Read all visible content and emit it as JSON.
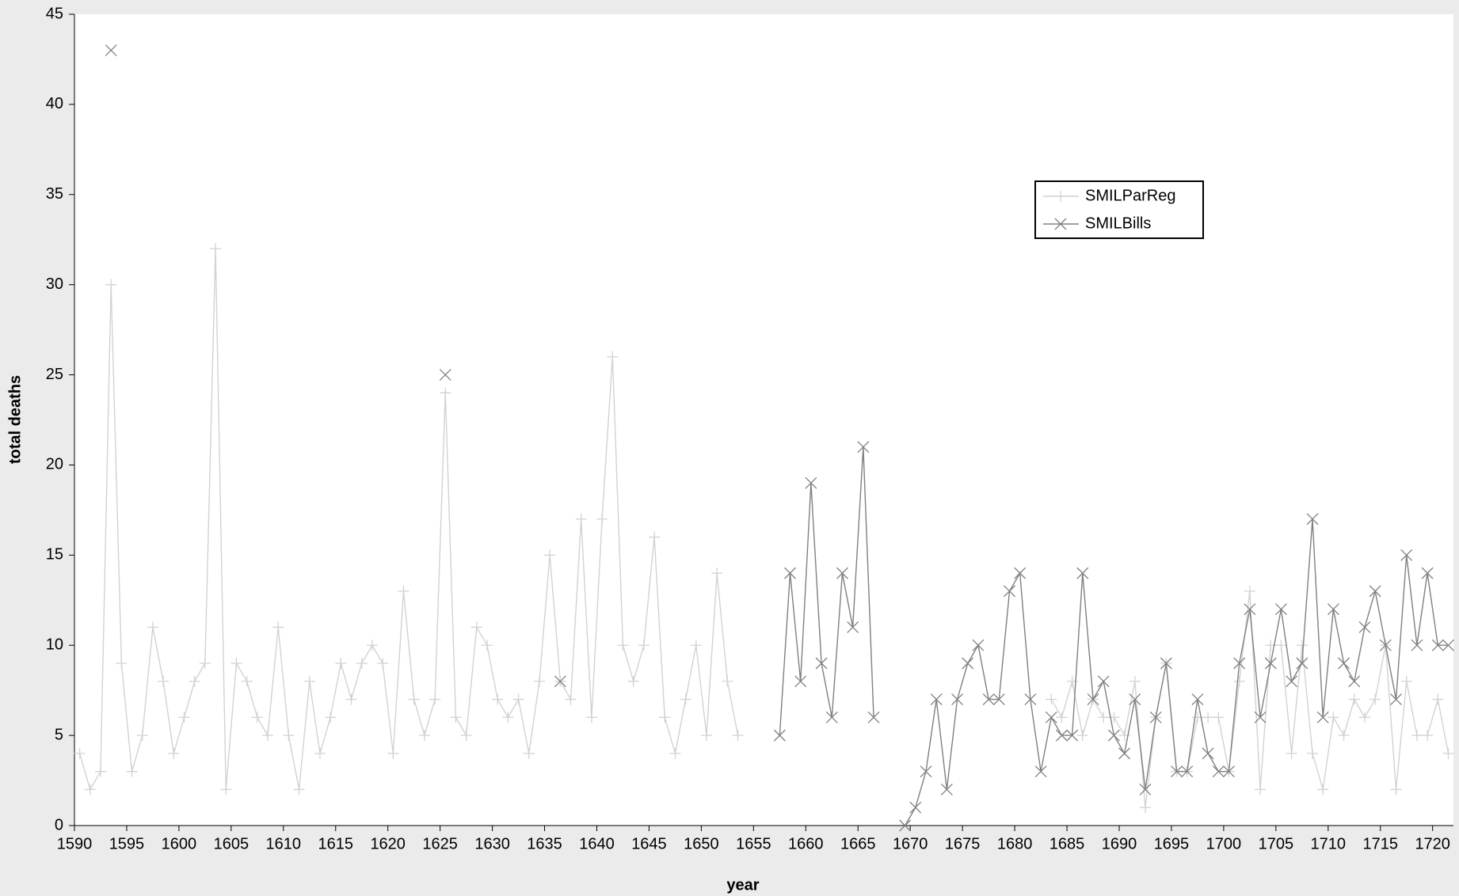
{
  "chart_data": {
    "type": "line",
    "x_label": "year",
    "y_label": "total deaths",
    "categories": [
      1590,
      1591,
      1592,
      1593,
      1594,
      1595,
      1596,
      1597,
      1598,
      1599,
      1600,
      1601,
      1602,
      1603,
      1604,
      1605,
      1606,
      1607,
      1608,
      1609,
      1610,
      1611,
      1612,
      1613,
      1614,
      1615,
      1616,
      1617,
      1618,
      1619,
      1620,
      1621,
      1622,
      1623,
      1624,
      1625,
      1626,
      1627,
      1628,
      1629,
      1630,
      1631,
      1632,
      1633,
      1634,
      1635,
      1636,
      1637,
      1638,
      1639,
      1640,
      1641,
      1642,
      1643,
      1644,
      1645,
      1646,
      1647,
      1648,
      1649,
      1650,
      1651,
      1652,
      1653,
      1654,
      1655,
      1656,
      1657,
      1658,
      1659,
      1660,
      1661,
      1662,
      1663,
      1664,
      1665,
      1666,
      1667,
      1668,
      1669,
      1670,
      1671,
      1672,
      1673,
      1674,
      1675,
      1676,
      1677,
      1678,
      1679,
      1680,
      1681,
      1682,
      1683,
      1684,
      1685,
      1686,
      1687,
      1688,
      1689,
      1690,
      1691,
      1692,
      1693,
      1694,
      1695,
      1696,
      1697,
      1698,
      1699,
      1700,
      1701,
      1702,
      1703,
      1704,
      1705,
      1706,
      1707,
      1708,
      1709,
      1710,
      1711,
      1712,
      1713,
      1714,
      1715,
      1716,
      1717,
      1718,
      1719,
      1720,
      1721
    ],
    "series": [
      {
        "name": "SMILParReg",
        "color": "#d2d2d2",
        "marker": "plus",
        "values": [
          4,
          2,
          3,
          30,
          9,
          3,
          5,
          11,
          8,
          4,
          6,
          8,
          9,
          32,
          2,
          9,
          8,
          6,
          5,
          11,
          5,
          2,
          8,
          4,
          6,
          9,
          7,
          9,
          10,
          9,
          4,
          13,
          7,
          5,
          7,
          24,
          6,
          5,
          11,
          10,
          7,
          6,
          7,
          4,
          8,
          15,
          8,
          7,
          17,
          6,
          17,
          26,
          10,
          8,
          10,
          16,
          6,
          4,
          7,
          10,
          5,
          14,
          8,
          5,
          null,
          null,
          null,
          null,
          null,
          null,
          null,
          null,
          null,
          null,
          null,
          null,
          null,
          null,
          null,
          null,
          null,
          null,
          null,
          null,
          null,
          null,
          null,
          null,
          null,
          null,
          null,
          null,
          null,
          7,
          6,
          8,
          5,
          7,
          6,
          6,
          5,
          8,
          1,
          6,
          9,
          3,
          3,
          6,
          6,
          6,
          3,
          8,
          13,
          2,
          10,
          10,
          4,
          10,
          4,
          2,
          6,
          5,
          7,
          6,
          7,
          10,
          2,
          8,
          5,
          5,
          7,
          4
        ]
      },
      {
        "name": "SMILBills",
        "color": "#808080",
        "marker": "cross",
        "values": [
          null,
          null,
          null,
          43,
          null,
          null,
          null,
          null,
          null,
          null,
          null,
          null,
          null,
          null,
          null,
          null,
          null,
          null,
          null,
          null,
          null,
          null,
          null,
          null,
          null,
          null,
          null,
          null,
          null,
          null,
          null,
          null,
          null,
          null,
          null,
          25,
          null,
          null,
          null,
          null,
          null,
          null,
          null,
          null,
          null,
          null,
          8,
          null,
          null,
          null,
          null,
          null,
          null,
          null,
          null,
          null,
          null,
          null,
          null,
          null,
          null,
          null,
          null,
          null,
          null,
          null,
          null,
          5,
          14,
          8,
          19,
          9,
          6,
          14,
          11,
          21,
          6,
          null,
          null,
          0,
          1,
          3,
          7,
          2,
          7,
          9,
          10,
          7,
          7,
          13,
          14,
          7,
          3,
          6,
          5,
          5,
          14,
          7,
          8,
          5,
          4,
          7,
          2,
          6,
          9,
          3,
          3,
          7,
          4,
          3,
          3,
          9,
          12,
          6,
          9,
          12,
          8,
          9,
          17,
          6,
          12,
          9,
          8,
          11,
          13,
          10,
          7,
          15,
          10,
          14,
          10,
          10
        ]
      }
    ],
    "ylim": [
      0,
      45
    ],
    "yticks": [
      0,
      5,
      10,
      15,
      20,
      25,
      30,
      35,
      40,
      45
    ],
    "x_label_every": 5,
    "legend": "upper-right"
  }
}
